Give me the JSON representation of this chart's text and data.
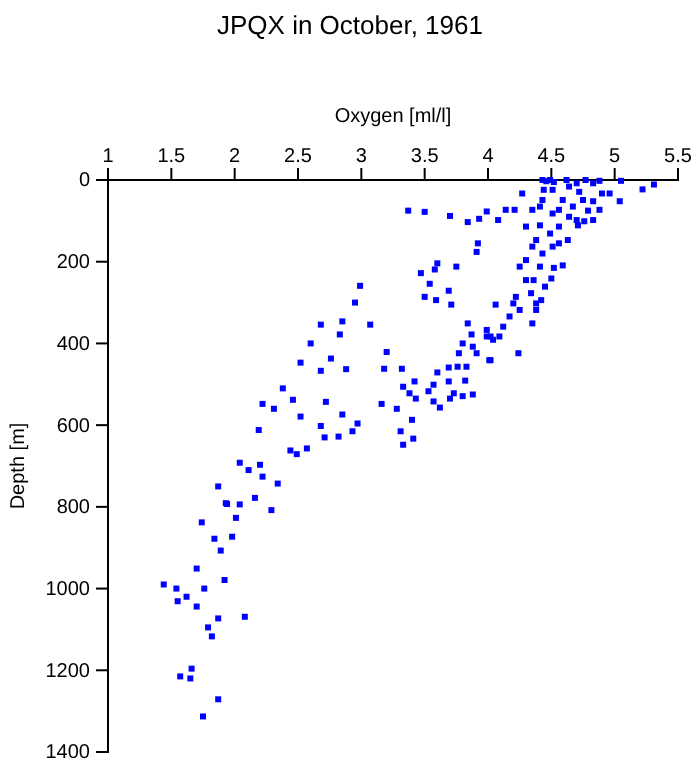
{
  "chart_data": {
    "type": "scatter",
    "title": "JPQX in October, 1961",
    "xlabel": "Oxygen [ml/l]",
    "ylabel": "Depth [m]",
    "xlim": [
      1,
      5.5
    ],
    "xticks": [
      1,
      1.5,
      2,
      2.5,
      3,
      3.5,
      4,
      4.5,
      5,
      5.5
    ],
    "ylim": [
      1400,
      0
    ],
    "yticks": [
      0,
      200,
      400,
      600,
      800,
      1000,
      1200,
      1400
    ],
    "marker": "square",
    "grid": false,
    "series": [
      {
        "color": "#0000ff",
        "x": [
          1.74,
          1.84,
          1.98,
          1.89,
          1.7,
          1.92,
          1.44,
          1.54,
          1.62,
          1.76,
          1.55,
          1.7,
          1.87,
          2.08,
          1.79,
          1.82,
          1.66,
          1.57,
          1.65,
          1.87,
          1.75,
          1.93,
          2.04,
          2.01,
          2.29,
          2.99,
          2.95,
          2.68,
          2.85,
          3.07,
          2.6,
          2.83,
          2.52,
          2.76,
          2.68,
          2.88,
          3.2,
          2.38,
          2.22,
          2.31,
          2.46,
          2.72,
          2.52,
          2.85,
          2.68,
          2.71,
          2.82,
          2.93,
          2.97,
          2.19,
          2.44,
          2.57,
          2.49,
          2.04,
          2.2,
          2.11,
          2.22,
          2.34,
          1.87,
          2.16,
          1.94,
          3.6,
          3.58,
          3.47,
          3.75,
          3.54,
          3.69,
          3.5,
          3.59,
          3.71,
          3.16,
          3.18,
          3.32,
          3.33,
          3.42,
          3.38,
          3.43,
          3.57,
          3.53,
          3.6,
          3.57,
          3.62,
          3.7,
          3.69,
          3.73,
          3.8,
          3.88,
          3.82,
          3.69,
          3.76,
          3.83,
          3.28,
          3.4,
          3.31,
          3.41,
          3.33,
          3.84,
          3.87,
          3.8,
          3.77,
          3.88,
          3.91,
          4.02,
          4.01,
          4.06,
          3.99,
          3.92,
          3.91,
          3.37,
          3.5,
          3.7,
          3.99,
          4.08,
          3.84,
          4.21,
          4.27,
          4.44,
          4.49,
          4.46,
          4.62,
          4.77,
          4.88,
          5.05,
          5.31,
          5.22,
          4.9,
          4.96,
          5.04,
          4.83,
          4.79,
          4.7,
          4.71,
          4.83,
          4.56,
          4.41,
          4.51,
          4.59,
          4.67,
          4.51,
          4.43,
          4.64,
          4.72,
          4.56,
          4.49,
          4.38,
          4.3,
          4.35,
          4.43,
          4.3,
          4.25,
          4.41,
          4.51,
          4.56,
          4.63,
          4.59,
          4.52,
          4.5,
          4.45,
          4.36,
          4.3,
          4.34,
          4.42,
          4.22,
          4.2,
          4.25,
          4.38,
          4.35,
          4.17,
          4.12,
          4.09,
          4.04,
          4.02,
          3.99,
          4.24,
          4.38,
          4.43,
          4.52,
          4.7,
          4.83,
          4.75,
          4.88,
          4.64,
          4.76,
          4.41,
          4.35,
          4.14,
          3.93
        ],
        "values": [
          838,
          878,
          873,
          907,
          951,
          979,
          990,
          1000,
          1020,
          1000,
          1031,
          1044,
          1073,
          1069,
          1095,
          1117,
          1196,
          1215,
          1220,
          1271,
          1313,
          791,
          794,
          827,
          808,
          259,
          300,
          354,
          346,
          354,
          400,
          378,
          447,
          437,
          467,
          463,
          421,
          510,
          548,
          560,
          538,
          543,
          579,
          574,
          602,
          630,
          628,
          615,
          596,
          612,
          662,
          657,
          671,
          692,
          697,
          710,
          726,
          743,
          750,
          778,
          793,
          204,
          219,
          228,
          212,
          254,
          271,
          286,
          294,
          305,
          548,
          462,
          462,
          506,
          493,
          522,
          535,
          501,
          517,
          471,
          542,
          557,
          535,
          493,
          522,
          529,
          525,
          491,
          459,
          457,
          457,
          560,
          587,
          615,
          633,
          648,
          351,
          378,
          400,
          424,
          408,
          424,
          383,
          441,
          305,
          367,
          155,
          176,
          75,
          78,
          88,
          77,
          98,
          103,
          73,
          33,
          24,
          0,
          3,
          0,
          0,
          2,
          2,
          11,
          23,
          33,
          33,
          52,
          52,
          75,
          98,
          111,
          98,
          114,
          111,
          24,
          49,
          65,
          82,
          49,
          16,
          29,
          73,
          131,
          147,
          114,
          163,
          180,
          196,
          212,
          212,
          163,
          155,
          147,
          209,
          215,
          241,
          261,
          245,
          245,
          277,
          294,
          286,
          302,
          318,
          318,
          351,
          334,
          359,
          383,
          391,
          441,
          383,
          424,
          302,
          0,
          5,
          8,
          8,
          49,
          73,
          90,
          101,
          65,
          73,
          73,
          95
        ]
      }
    ]
  }
}
